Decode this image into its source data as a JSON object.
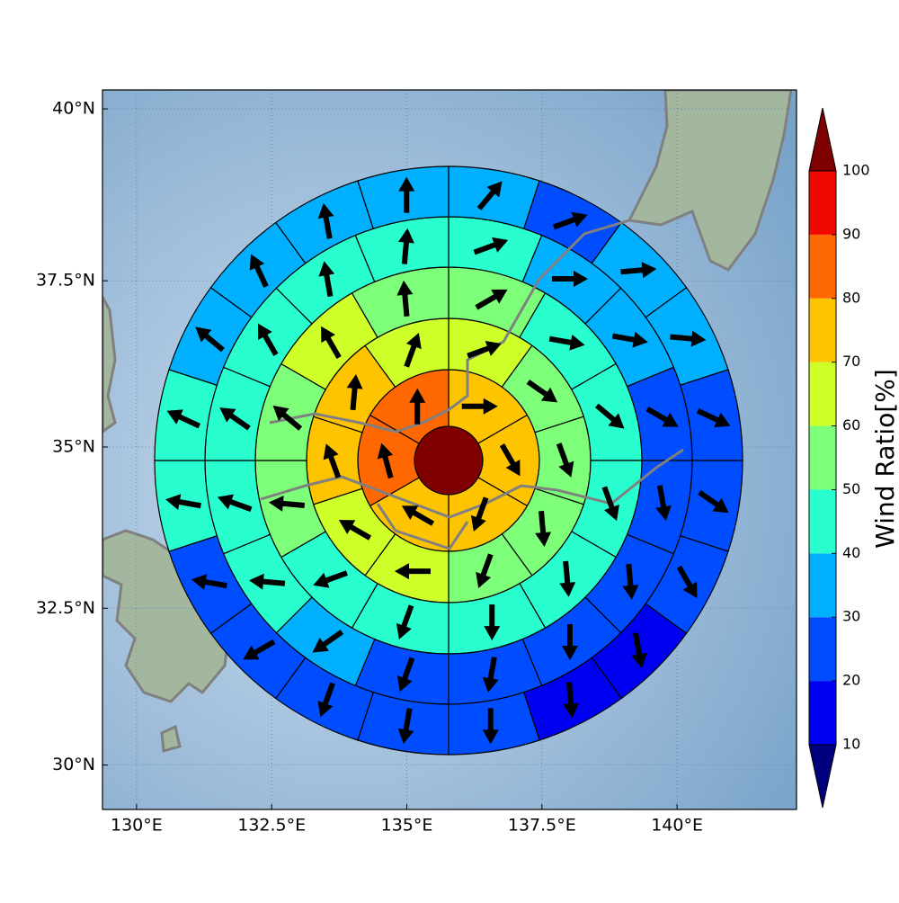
{
  "map": {
    "projection": "mercator",
    "xlim": [
      129.37,
      142.21
    ],
    "ylim": [
      29.28,
      40.27
    ],
    "xticks": [
      {
        "value": 130,
        "label": "130°E"
      },
      {
        "value": 132.5,
        "label": "132.5°E"
      },
      {
        "value": 135,
        "label": "135°E"
      },
      {
        "value": 137.5,
        "label": "137.5°E"
      },
      {
        "value": 140,
        "label": "140°E"
      }
    ],
    "yticks": [
      {
        "value": 30,
        "label": "30°N"
      },
      {
        "value": 32.5,
        "label": "32.5°N"
      },
      {
        "value": 35,
        "label": "35°N"
      },
      {
        "value": 37.5,
        "label": "37.5°N"
      },
      {
        "value": 40,
        "label": "40°N"
      }
    ],
    "grid": true,
    "center": {
      "value": 100
    },
    "rings": [
      {
        "values": [
          75,
          75,
          75,
          75,
          85,
          85
        ],
        "directions": [
          90,
          150,
          200,
          300,
          345,
          0
        ]
      },
      {
        "values": [
          65,
          55,
          55,
          55,
          55,
          65,
          65,
          75,
          75,
          65
        ],
        "directions": [
          70,
          125,
          160,
          175,
          200,
          270,
          300,
          340,
          5,
          20
        ]
      },
      {
        "values": [
          55,
          45,
          45,
          45,
          45,
          45,
          45,
          45,
          55,
          55,
          65,
          55
        ],
        "directions": [
          60,
          100,
          130,
          160,
          175,
          180,
          200,
          250,
          275,
          310,
          330,
          355
        ]
      },
      {
        "values": [
          45,
          35,
          35,
          25,
          25,
          25,
          25,
          25,
          25,
          35,
          45,
          45,
          45,
          45,
          45,
          45
        ],
        "directions": [
          70,
          90,
          100,
          120,
          170,
          175,
          180,
          190,
          200,
          235,
          275,
          290,
          305,
          330,
          350,
          5
        ]
      },
      {
        "values": [
          35,
          25,
          35,
          35,
          25,
          25,
          25,
          15,
          15,
          25,
          25,
          25,
          25,
          25,
          45,
          45,
          35,
          35,
          35,
          35
        ],
        "directions": [
          40,
          70,
          85,
          95,
          115,
          125,
          150,
          170,
          175,
          180,
          190,
          200,
          240,
          280,
          280,
          295,
          310,
          335,
          350,
          0
        ]
      }
    ],
    "colorbar": {
      "label": "Wind Ratio[%]",
      "levels": [
        10,
        20,
        30,
        40,
        50,
        60,
        70,
        80,
        90,
        100
      ],
      "ticks": [
        10,
        20,
        30,
        40,
        50,
        60,
        70,
        80,
        90,
        100
      ],
      "colors": [
        "#0000f1",
        "#004cff",
        "#00b0ff",
        "#29ffce",
        "#7dff7a",
        "#ceff29",
        "#ffc400",
        "#ff6800",
        "#f10800"
      ],
      "under_color": "#00007f",
      "over_color": "#7f0000"
    }
  }
}
